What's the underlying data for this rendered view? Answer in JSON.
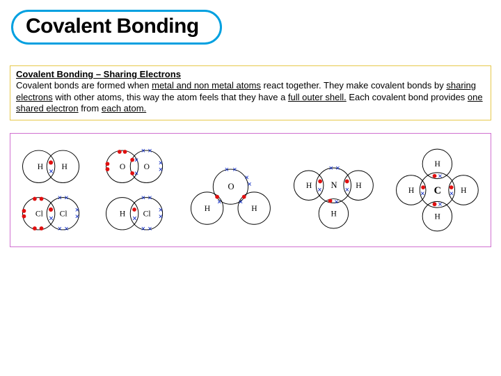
{
  "title": "Covalent Bonding",
  "textbox": {
    "border_color": "#e6c84a",
    "heading": "Covalent Bonding – Sharing Electrons",
    "body_parts": [
      {
        "t": "Covalent bonds are formed when "
      },
      {
        "t": "metal and non metal atoms",
        "u": true
      },
      {
        "t": " react together. They make covalent bonds by "
      },
      {
        "t": "sharing electrons",
        "u": true
      },
      {
        "t": " with other atoms, this way the atom feels that they have a "
      },
      {
        "t": "full outer shell.",
        "u": true
      },
      {
        "t": " Each covalent bond provides "
      },
      {
        "t": "one shared electron",
        "u": true
      },
      {
        "t": " from "
      },
      {
        "t": "each atom.",
        "u": true
      }
    ]
  },
  "diagram": {
    "border_color": "#d070d0",
    "stroke": "#000000",
    "electron_fill": "#e01010",
    "label_fontsize": 12,
    "shell_r": 26
  },
  "labels": {
    "H": "H",
    "O": "O",
    "Cl": "Cl",
    "N": "N",
    "C": "C"
  }
}
